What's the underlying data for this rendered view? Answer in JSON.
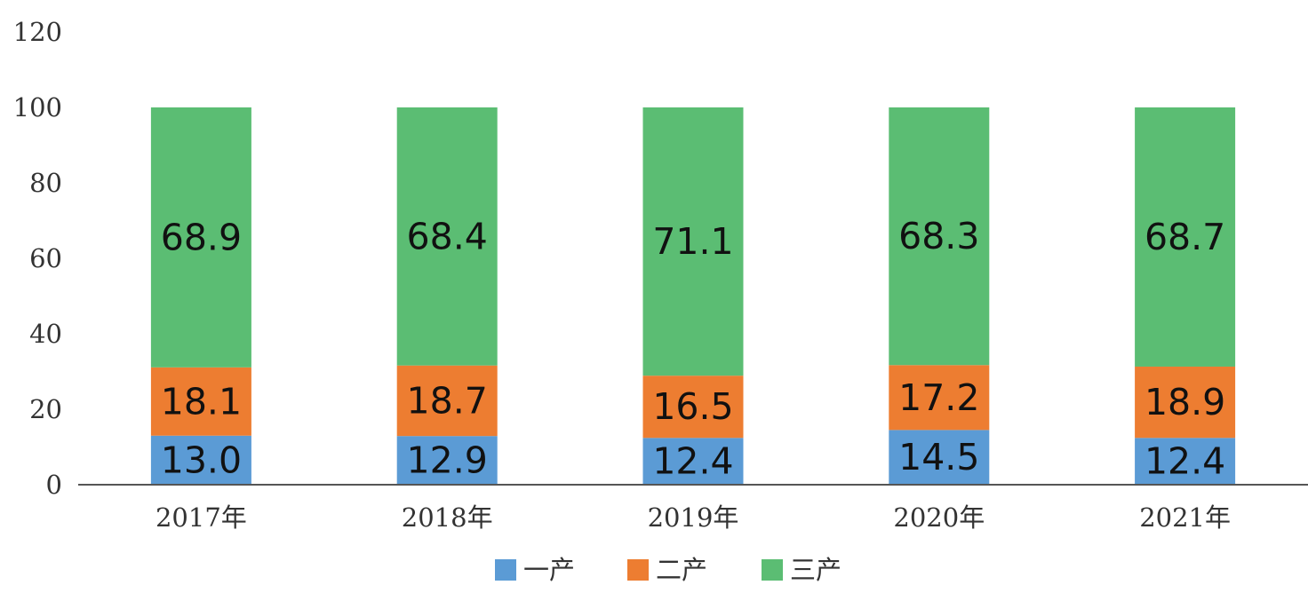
{
  "chart_data": {
    "type": "bar",
    "stacked": true,
    "title": "",
    "xlabel": "",
    "ylabel": "",
    "ylim": [
      0,
      120
    ],
    "yticks": [
      "0",
      "20",
      "40",
      "60",
      "80",
      "100",
      "120"
    ],
    "categories": [
      "2017年",
      "2018年",
      "2019年",
      "2020年",
      "2021年"
    ],
    "series": [
      {
        "name": "一产",
        "color": "#5b9bd5",
        "values": [
          13.0,
          12.9,
          12.4,
          14.5,
          12.4
        ],
        "labels": [
          "13.0",
          "12.9",
          "12.4",
          "14.5",
          "12.4"
        ]
      },
      {
        "name": "二产",
        "color": "#ed7d31",
        "values": [
          18.1,
          18.7,
          16.5,
          17.2,
          18.9
        ],
        "labels": [
          "18.1",
          "18.7",
          "16.5",
          "17.2",
          "18.9"
        ]
      },
      {
        "name": "三产",
        "color": "#5bbd73",
        "values": [
          68.9,
          68.4,
          71.1,
          68.3,
          68.7
        ],
        "labels": [
          "68.9",
          "68.4",
          "71.1",
          "68.3",
          "68.7"
        ]
      }
    ],
    "grid": false,
    "legend_position": "bottom"
  }
}
